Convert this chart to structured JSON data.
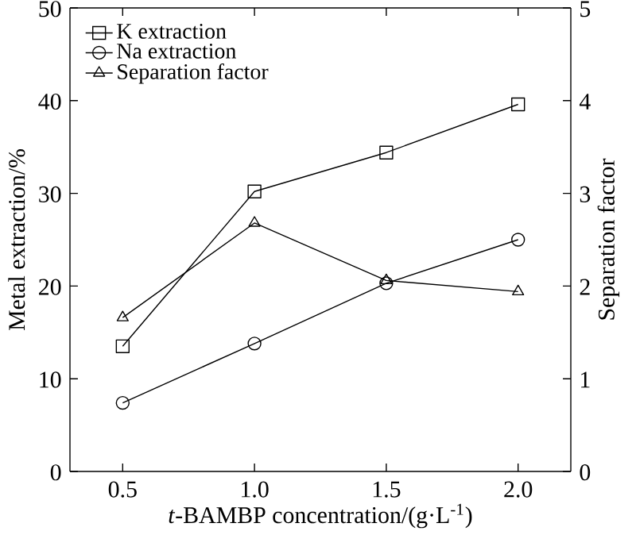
{
  "chart_data": {
    "type": "line",
    "xlabel": "*t*-BAMBP concentration/(g·L$^{-1}$)",
    "ylabel": "Metal extraction/%",
    "y2label": "Separation factor",
    "x": [
      0.5,
      1.0,
      1.5,
      2.0
    ],
    "series": [
      {
        "name": "K extraction",
        "color": "#000000",
        "marker": "square",
        "values": [
          13.5,
          30.2,
          34.4,
          39.6
        ]
      },
      {
        "name": "Na extraction",
        "color": "#000000",
        "marker": "circle",
        "values": [
          7.4,
          13.8,
          20.3,
          25.0
        ]
      },
      {
        "name": "Separation factor",
        "color": "#000000",
        "marker": "triangle",
        "axis": "y2",
        "values": [
          1.66,
          2.68,
          2.06,
          1.94
        ]
      }
    ],
    "xlim": [
      0.3,
      2.2
    ],
    "xticks": [
      0.5,
      {
        "value": 1,
        "label": "1.0"
      },
      1.5,
      {
        "value": 2,
        "label": "2.0"
      }
    ],
    "ylim": [
      0,
      50
    ],
    "yticks": [
      0,
      10,
      20,
      30,
      40,
      50
    ],
    "y2lim": [
      0,
      5
    ],
    "y2ticks": [
      0,
      1,
      2,
      3,
      4,
      5
    ],
    "legend": "top left",
    "line_style": "solid"
  }
}
